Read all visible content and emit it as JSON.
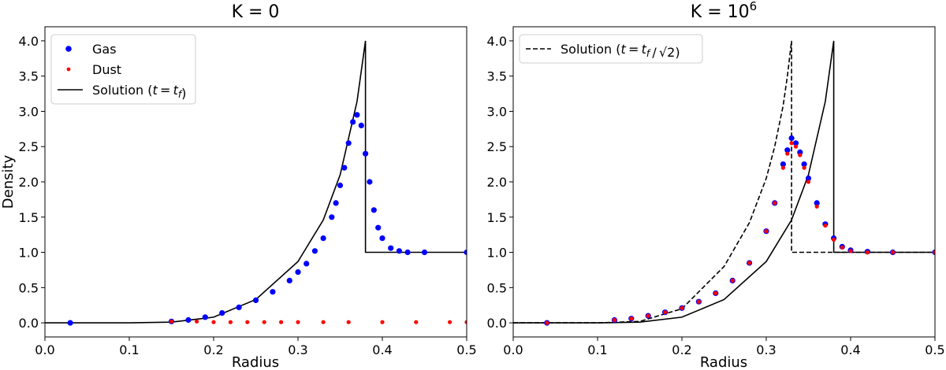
{
  "chart_data": [
    {
      "type": "scatter",
      "title": "K = 0",
      "xlabel": "Radius",
      "ylabel": "Density",
      "xlim": [
        0,
        0.5
      ],
      "ylim": [
        -0.2,
        4.2
      ],
      "xticks": [
        "0.0",
        "0.1",
        "0.2",
        "0.3",
        "0.4",
        "0.5"
      ],
      "yticks": [
        "0.0",
        "0.5",
        "1.0",
        "1.5",
        "2.0",
        "2.5",
        "3.0",
        "3.5",
        "4.0"
      ],
      "legend_position": "top-left",
      "grid": false,
      "colors": {
        "gas": "#0000ff",
        "dust": "#ff0000",
        "solution": "#000000"
      },
      "series": [
        {
          "name": "Gas",
          "kind": "scatter",
          "x": [
            0.03,
            0.15,
            0.17,
            0.19,
            0.21,
            0.23,
            0.25,
            0.27,
            0.29,
            0.3,
            0.31,
            0.32,
            0.33,
            0.34,
            0.345,
            0.35,
            0.355,
            0.36,
            0.365,
            0.37,
            0.375,
            0.38,
            0.385,
            0.39,
            0.395,
            0.4,
            0.41,
            0.42,
            0.43,
            0.45,
            0.5
          ],
          "y": [
            0.0,
            0.02,
            0.04,
            0.08,
            0.14,
            0.22,
            0.32,
            0.44,
            0.6,
            0.72,
            0.84,
            1.02,
            1.2,
            1.5,
            1.7,
            1.95,
            2.2,
            2.55,
            2.85,
            2.95,
            2.8,
            2.4,
            2.0,
            1.6,
            1.35,
            1.2,
            1.06,
            1.02,
            1.0,
            1.0,
            1.0
          ]
        },
        {
          "name": "Dust",
          "kind": "scatter",
          "x": [
            0.15,
            0.18,
            0.2,
            0.22,
            0.24,
            0.26,
            0.28,
            0.3,
            0.33,
            0.36,
            0.4,
            0.44,
            0.48,
            0.5
          ],
          "y": [
            0.02,
            0.02,
            0.01,
            0.01,
            0.01,
            0.01,
            0.01,
            0.01,
            0.01,
            0.01,
            0.01,
            0.01,
            0.01,
            0.01
          ]
        },
        {
          "name": "Solution ($t = t_f$)",
          "kind": "line",
          "dash": "solid",
          "x": [
            0.0,
            0.1,
            0.15,
            0.2,
            0.25,
            0.3,
            0.33,
            0.35,
            0.37,
            0.38,
            0.38,
            0.5
          ],
          "y": [
            0.0,
            0.0,
            0.01,
            0.08,
            0.33,
            0.87,
            1.46,
            2.1,
            3.14,
            4.0,
            1.0,
            1.0
          ]
        }
      ]
    },
    {
      "type": "scatter",
      "title": "K = 10",
      "title_superscript": "6",
      "xlabel": "Radius",
      "ylabel": "",
      "xlim": [
        0,
        0.5
      ],
      "ylim": [
        -0.2,
        4.2
      ],
      "xticks": [
        "0.0",
        "0.1",
        "0.2",
        "0.3",
        "0.4",
        "0.5"
      ],
      "yticks": [
        "0.0",
        "0.5",
        "1.0",
        "1.5",
        "2.0",
        "2.5",
        "3.0",
        "3.5",
        "4.0"
      ],
      "legend_position": "top-left",
      "grid": false,
      "colors": {
        "gas": "#0000ff",
        "dust": "#ff0000",
        "solution": "#000000"
      },
      "series": [
        {
          "name": "Gas",
          "kind": "scatter",
          "x": [
            0.04,
            0.12,
            0.14,
            0.16,
            0.18,
            0.2,
            0.22,
            0.24,
            0.26,
            0.28,
            0.3,
            0.31,
            0.32,
            0.325,
            0.33,
            0.335,
            0.34,
            0.345,
            0.35,
            0.36,
            0.37,
            0.38,
            0.39,
            0.4,
            0.42,
            0.45,
            0.5
          ],
          "y": [
            0.0,
            0.04,
            0.06,
            0.1,
            0.15,
            0.21,
            0.3,
            0.42,
            0.6,
            0.85,
            1.3,
            1.7,
            2.25,
            2.45,
            2.62,
            2.55,
            2.42,
            2.25,
            2.05,
            1.7,
            1.4,
            1.2,
            1.08,
            1.03,
            1.01,
            1.0,
            1.0
          ]
        },
        {
          "name": "Dust",
          "kind": "scatter",
          "x": [
            0.04,
            0.12,
            0.14,
            0.16,
            0.18,
            0.2,
            0.22,
            0.24,
            0.26,
            0.28,
            0.3,
            0.31,
            0.32,
            0.325,
            0.33,
            0.335,
            0.34,
            0.345,
            0.35,
            0.36,
            0.37,
            0.38,
            0.39,
            0.4,
            0.42,
            0.45,
            0.5
          ],
          "y": [
            0.0,
            0.04,
            0.06,
            0.1,
            0.15,
            0.21,
            0.3,
            0.42,
            0.6,
            0.85,
            1.3,
            1.7,
            2.2,
            2.4,
            2.55,
            2.5,
            2.38,
            2.2,
            2.0,
            1.65,
            1.38,
            1.18,
            1.07,
            1.02,
            1.0,
            1.0,
            1.0
          ]
        },
        {
          "name": "Solution ($t = t_f$)",
          "kind": "line",
          "dash": "solid",
          "legend": false,
          "x": [
            0.0,
            0.1,
            0.15,
            0.2,
            0.25,
            0.3,
            0.33,
            0.35,
            0.37,
            0.38,
            0.38,
            0.5
          ],
          "y": [
            0.0,
            0.0,
            0.01,
            0.08,
            0.33,
            0.87,
            1.46,
            2.1,
            3.14,
            4.0,
            1.0,
            1.0
          ]
        },
        {
          "name": "Solution ($t = t_f\\ /\\ \\sqrt{2}$)",
          "kind": "line",
          "dash": "dashed",
          "x": [
            0.0,
            0.1,
            0.15,
            0.2,
            0.25,
            0.28,
            0.3,
            0.31,
            0.32,
            0.325,
            0.33,
            0.33,
            0.5
          ],
          "y": [
            0.0,
            0.0,
            0.02,
            0.2,
            0.8,
            1.42,
            2.05,
            2.5,
            3.08,
            3.5,
            4.0,
            1.0,
            1.0
          ]
        }
      ]
    }
  ]
}
